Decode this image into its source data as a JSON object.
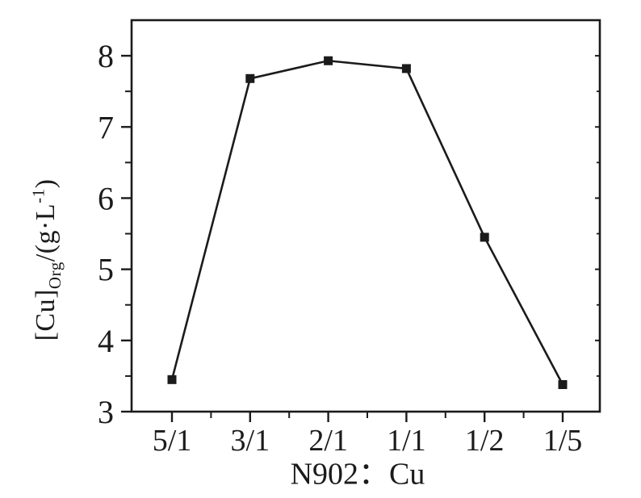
{
  "canvas": {
    "background": "#ffffff",
    "ink": "#1b1b1b"
  },
  "y_axis_title": {
    "bracket": "[Cu]",
    "subscript": "Org",
    "unit_pre": "/(g·L",
    "superscript": "-1",
    "unit_post": ")"
  },
  "x_axis_title": "N902：Cu",
  "chart_data": {
    "type": "line",
    "title": "",
    "xlabel": "N902：Cu",
    "ylabel": "[Cu]Org/(g·L-1)",
    "categories": [
      "5/1",
      "3/1",
      "2/1",
      "1/1",
      "1/2",
      "1/5"
    ],
    "values": [
      3.45,
      7.68,
      7.93,
      7.82,
      5.45,
      3.38
    ],
    "ylim": [
      3,
      8.5
    ],
    "y_major_ticks": [
      3,
      4,
      5,
      6,
      7,
      8
    ],
    "y_minor_ticks": [
      3.5,
      4.5,
      5.5,
      6.5,
      7.5
    ],
    "x_minor_ticks": "midpoints-between-categories",
    "grid": false,
    "legend": false,
    "marker": "filled-square",
    "line_color": "#1b1b1b"
  }
}
